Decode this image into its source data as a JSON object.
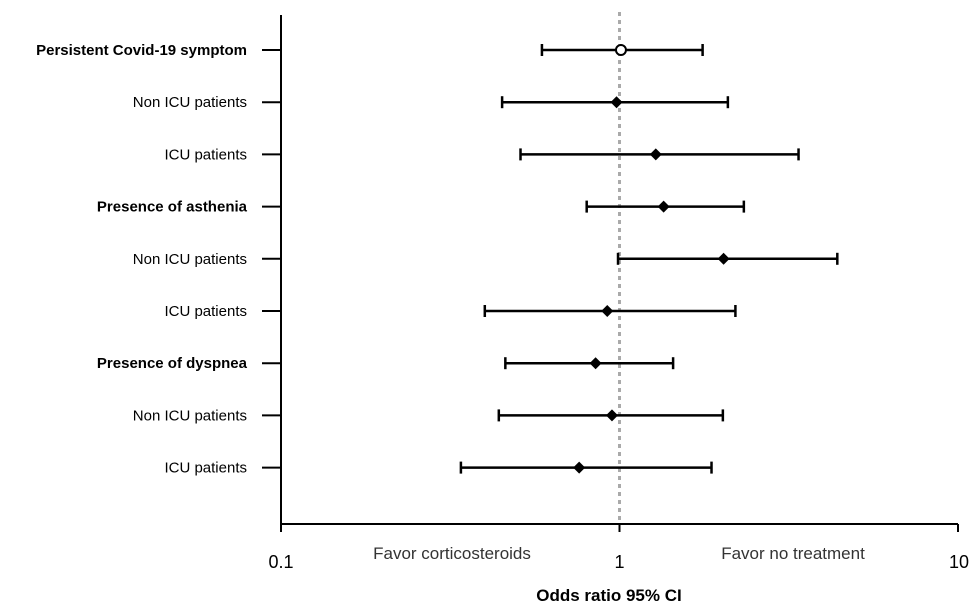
{
  "chart_data": {
    "type": "forest",
    "xscale": "log",
    "xlim": [
      0.1,
      10
    ],
    "xticks": [
      {
        "value": 0.1,
        "label": "0.1"
      },
      {
        "value": 1,
        "label": "1"
      },
      {
        "value": 10,
        "label": "10"
      }
    ],
    "xlabel": "Odds ratio 95% CI",
    "reference_line": {
      "value": 1,
      "style": "dotted",
      "color": "#aaaaaa"
    },
    "favor_left": "Favor corticosteroids",
    "favor_right": "Favor no treatment",
    "marker_color": "#000000",
    "rows": [
      {
        "label": "Persistent Covid-19 symptom",
        "bold": true,
        "estimate": 1.01,
        "ci_low": 0.59,
        "ci_high": 1.76,
        "marker": "circle"
      },
      {
        "label": "Non ICU patients",
        "bold": false,
        "estimate": 0.98,
        "ci_low": 0.45,
        "ci_high": 2.09,
        "marker": "diamond"
      },
      {
        "label": "ICU patients",
        "bold": false,
        "estimate": 1.28,
        "ci_low": 0.51,
        "ci_high": 3.38,
        "marker": "diamond"
      },
      {
        "label": "Presence of asthenia",
        "bold": true,
        "estimate": 1.35,
        "ci_low": 0.8,
        "ci_high": 2.33,
        "marker": "diamond"
      },
      {
        "label": "Non ICU patients",
        "bold": false,
        "estimate": 2.03,
        "ci_low": 0.99,
        "ci_high": 4.4,
        "marker": "diamond"
      },
      {
        "label": "ICU patients",
        "bold": false,
        "estimate": 0.92,
        "ci_low": 0.4,
        "ci_high": 2.2,
        "marker": "diamond"
      },
      {
        "label": "Presence of dyspnea",
        "bold": true,
        "estimate": 0.85,
        "ci_low": 0.46,
        "ci_high": 1.44,
        "marker": "diamond"
      },
      {
        "label": "Non ICU patients",
        "bold": false,
        "estimate": 0.95,
        "ci_low": 0.44,
        "ci_high": 2.02,
        "marker": "diamond"
      },
      {
        "label": "ICU patients",
        "bold": false,
        "estimate": 0.76,
        "ci_low": 0.34,
        "ci_high": 1.87,
        "marker": "diamond"
      }
    ]
  }
}
